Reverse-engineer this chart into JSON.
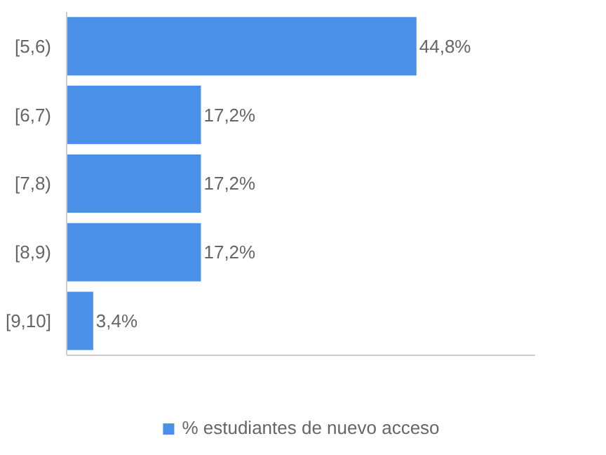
{
  "chart_data": {
    "type": "bar",
    "orientation": "horizontal",
    "categories": [
      "[5,6)",
      "[6,7)",
      "[7,8)",
      "[8,9)",
      "[9,10]"
    ],
    "series": [
      {
        "name": "% estudiantes de nuevo acceso",
        "color": "#4a8fe8",
        "values": [
          44.8,
          17.2,
          17.2,
          17.2,
          3.4
        ],
        "value_labels": [
          "44,8%",
          "17,2%",
          "17,2%",
          "17,2%",
          "3,4%"
        ]
      }
    ],
    "xlim": [
      0,
      60
    ],
    "legend": "bottom"
  }
}
